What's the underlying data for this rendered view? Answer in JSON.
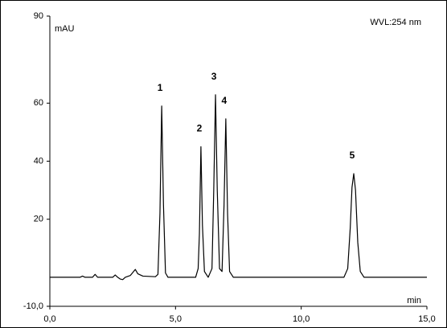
{
  "chart_data": {
    "type": "line",
    "y_label": "mAU",
    "x_label": "min",
    "annotation": "WVL:254 nm",
    "series": [
      {
        "color": "#000000",
        "x": [
          0,
          1.2,
          1.3,
          1.4,
          1.7,
          1.8,
          1.9,
          2.5,
          2.6,
          2.7,
          2.8,
          2.9,
          3.0,
          3.2,
          3.4,
          3.5,
          3.7,
          4.2,
          4.3,
          4.38,
          4.45,
          4.52,
          4.6,
          4.7,
          5.8,
          5.9,
          5.95,
          6.01,
          6.07,
          6.15,
          6.3,
          6.45,
          6.52,
          6.59,
          6.66,
          6.75,
          6.85,
          6.93,
          7.0,
          7.07,
          7.15,
          7.3,
          11.7,
          11.85,
          11.95,
          12.02,
          12.09,
          12.16,
          12.25,
          12.35,
          12.5,
          15
        ],
        "values": [
          0,
          0,
          0.4,
          0,
          0,
          1,
          0,
          0,
          0.8,
          0,
          -0.6,
          -0.8,
          0,
          0.6,
          2.7,
          1.2,
          0.4,
          0.2,
          1,
          22,
          59,
          25,
          1.5,
          0,
          0,
          3,
          15,
          45,
          18,
          2,
          0,
          3,
          30,
          62.9,
          30,
          3,
          2,
          25,
          54.6,
          22,
          2,
          0,
          0,
          3,
          17,
          31,
          35.7,
          30,
          12,
          2,
          0,
          0
        ]
      }
    ],
    "peaks": [
      {
        "label": "1",
        "x": 4.45,
        "y": 59
      },
      {
        "label": "2",
        "x": 6.01,
        "y": 45
      },
      {
        "label": "3",
        "x": 6.59,
        "y": 62.9
      },
      {
        "label": "4",
        "x": 7.0,
        "y": 54.6
      },
      {
        "label": "5",
        "x": 12.09,
        "y": 35.7
      }
    ],
    "xlim": [
      0,
      15
    ],
    "xticks": [
      {
        "value": 0,
        "label": "0,0"
      },
      {
        "value": 5,
        "label": "5,0"
      },
      {
        "value": 10,
        "label": "10,0"
      },
      {
        "value": 15,
        "label": "15,0"
      }
    ],
    "ylim": [
      -10,
      90
    ],
    "yticks": [
      {
        "value": -10,
        "label": "-10,0"
      },
      20,
      40,
      60,
      90
    ]
  }
}
